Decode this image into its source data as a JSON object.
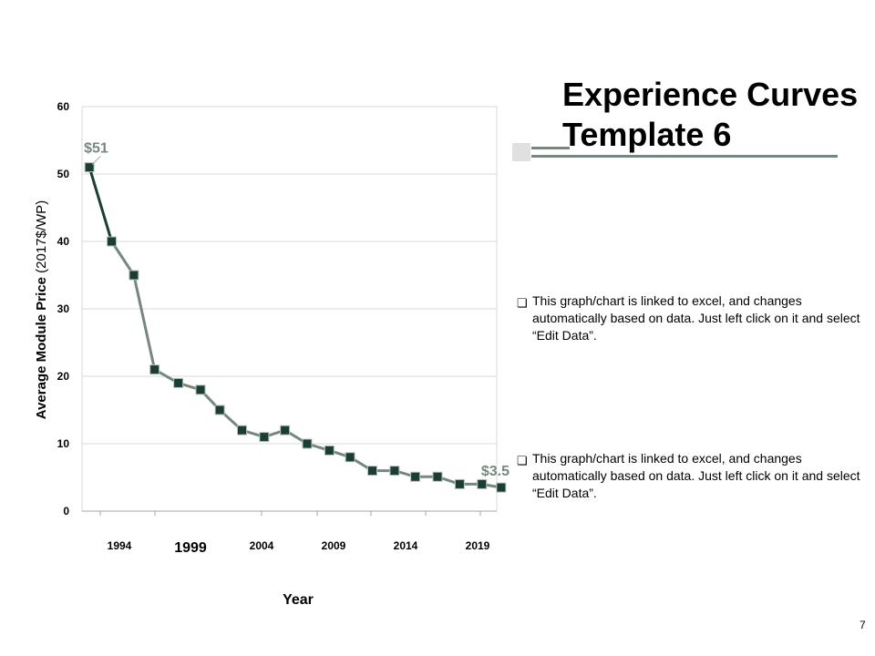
{
  "slide": {
    "title_line1": "Experience Curves",
    "title_line2": "Template 6",
    "bullets": [
      "This graph/chart is linked to excel, and changes automatically based on data. Just left click on it and select “Edit Data”.",
      "This graph/chart is linked to excel, and changes automatically based on data. Just left click on it and select “Edit Data”."
    ],
    "bullet_glyph": "❏",
    "page_number": "7"
  },
  "chart_data": {
    "type": "line",
    "title": "",
    "xlabel": "Year",
    "ylabel_bold": "Average Module Price",
    "ylabel_rest": " (2017$/WP)",
    "ylim": [
      0,
      60
    ],
    "yticks": [
      0,
      10,
      20,
      30,
      40,
      50,
      60
    ],
    "xlim": [
      1991.5,
      2019.5
    ],
    "x_tick_labels": [
      "1994",
      "1999",
      "2004",
      "2009",
      "2014",
      "2019"
    ],
    "x": [
      1992,
      1993.5,
      1995,
      1996.4,
      1998,
      1999.5,
      2000.8,
      2002.3,
      2003.8,
      2005.2,
      2006.7,
      2008.2,
      2009.6,
      2011.1,
      2012.6,
      2014,
      2015.5,
      2017,
      2018.5,
      2019.8
    ],
    "values": [
      51,
      40,
      35,
      21,
      19,
      18,
      15,
      12,
      11,
      12,
      10,
      9,
      8,
      6,
      6,
      5.1,
      5.1,
      4,
      4,
      3.5
    ],
    "annotations": [
      {
        "label": "$51",
        "point_index": 0
      },
      {
        "label": "$3.5",
        "point_index": 19
      }
    ],
    "colors": {
      "line_early": "#1a3d36",
      "line": "#76887d",
      "marker": "#1a3d36",
      "annotation": "#76887d",
      "grid": "#d9d9d9"
    }
  }
}
